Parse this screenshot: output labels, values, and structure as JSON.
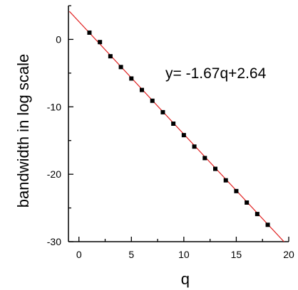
{
  "chart_data": {
    "type": "scatter",
    "title": "",
    "xlabel": "q",
    "ylabel": "bandwidth in log scale",
    "xlim": [
      -1,
      20
    ],
    "ylim": [
      -30,
      5
    ],
    "xticks": [
      0,
      5,
      10,
      15,
      20
    ],
    "xtick_labels": [
      "0",
      "5",
      "10",
      "15",
      "20"
    ],
    "yticks": [
      0,
      -10,
      -20,
      -30
    ],
    "ytick_labels": [
      "0",
      "-10",
      "-20",
      "-30"
    ],
    "grid": false,
    "series": [
      {
        "x": [
          1,
          2,
          3,
          4,
          5,
          6,
          7,
          8,
          9,
          10,
          11,
          12,
          13,
          14,
          15,
          16,
          17,
          18
        ],
        "y": [
          1.0,
          -0.4,
          -2.5,
          -4.1,
          -5.8,
          -7.5,
          -9.1,
          -10.8,
          -12.5,
          -14.2,
          -15.9,
          -17.6,
          -19.2,
          -20.9,
          -22.5,
          -24.2,
          -25.9,
          -27.5
        ],
        "marker": "square",
        "color": "#000000"
      }
    ],
    "fit": {
      "slope": -1.67,
      "intercept": 2.64,
      "color": "#e02020",
      "label": "y= -1.67q+2.64"
    }
  }
}
